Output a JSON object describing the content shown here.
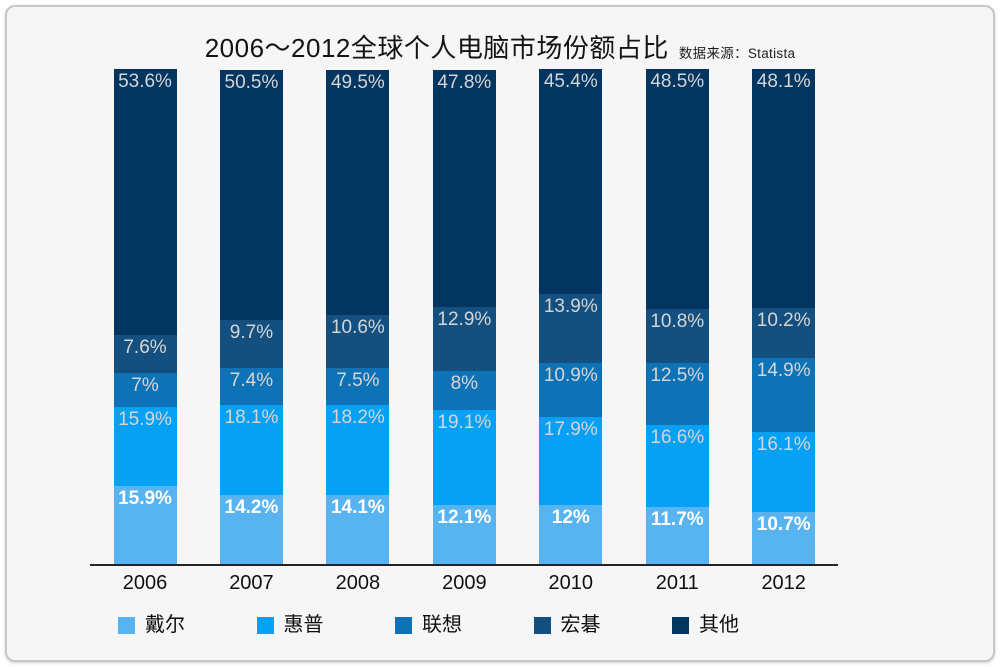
{
  "header": {
    "title": "2006～2012全球个人电脑市场份额占比",
    "source_label": "数据来源：Statista"
  },
  "chart_data": {
    "type": "bar",
    "stacked": true,
    "percent_stacked": true,
    "unit": "%",
    "title": "2006～2012全球个人电脑市场份额占比",
    "source": "Statista",
    "categories": [
      "2006",
      "2007",
      "2008",
      "2009",
      "2010",
      "2011",
      "2012"
    ],
    "series": [
      {
        "name": "戴尔",
        "color": "#57b4f0",
        "values": [
          15.9,
          14.2,
          14.1,
          12.1,
          12,
          11.7,
          10.7
        ],
        "labels": [
          "15.9%",
          "14.2%",
          "14.1%",
          "12.1%",
          "12%",
          "11.7%",
          "10.7%"
        ]
      },
      {
        "name": "惠普",
        "color": "#06a1f4",
        "values": [
          15.9,
          18.1,
          18.2,
          19.1,
          17.9,
          16.6,
          16.1
        ],
        "labels": [
          "15.9%",
          "18.1%",
          "18.2%",
          "19.1%",
          "17.9%",
          "16.6%",
          "16.1%"
        ]
      },
      {
        "name": "联想",
        "color": "#0e72b6",
        "values": [
          7,
          7.4,
          7.5,
          8,
          10.9,
          12.5,
          14.9
        ],
        "labels": [
          "7%",
          "7.4%",
          "7.5%",
          "8%",
          "10.9%",
          "12.5%",
          "14.9%"
        ]
      },
      {
        "name": "宏碁",
        "color": "#14507f",
        "values": [
          7.6,
          9.7,
          10.6,
          12.9,
          13.9,
          10.8,
          10.2
        ],
        "labels": [
          "7.6%",
          "9.7%",
          "10.6%",
          "12.9%",
          "13.9%",
          "10.8%",
          "10.2%"
        ]
      },
      {
        "name": "其他",
        "color": "#02355f",
        "values": [
          53.6,
          50.5,
          49.5,
          47.8,
          45.4,
          48.5,
          48.1
        ],
        "labels": [
          "53.6%",
          "50.5%",
          "49.5%",
          "47.8%",
          "45.4%",
          "48.5%",
          "48.1%"
        ]
      }
    ],
    "ylim": [
      0,
      100
    ],
    "grid": false,
    "y_axis_visible": false,
    "legend_position": "bottom"
  }
}
